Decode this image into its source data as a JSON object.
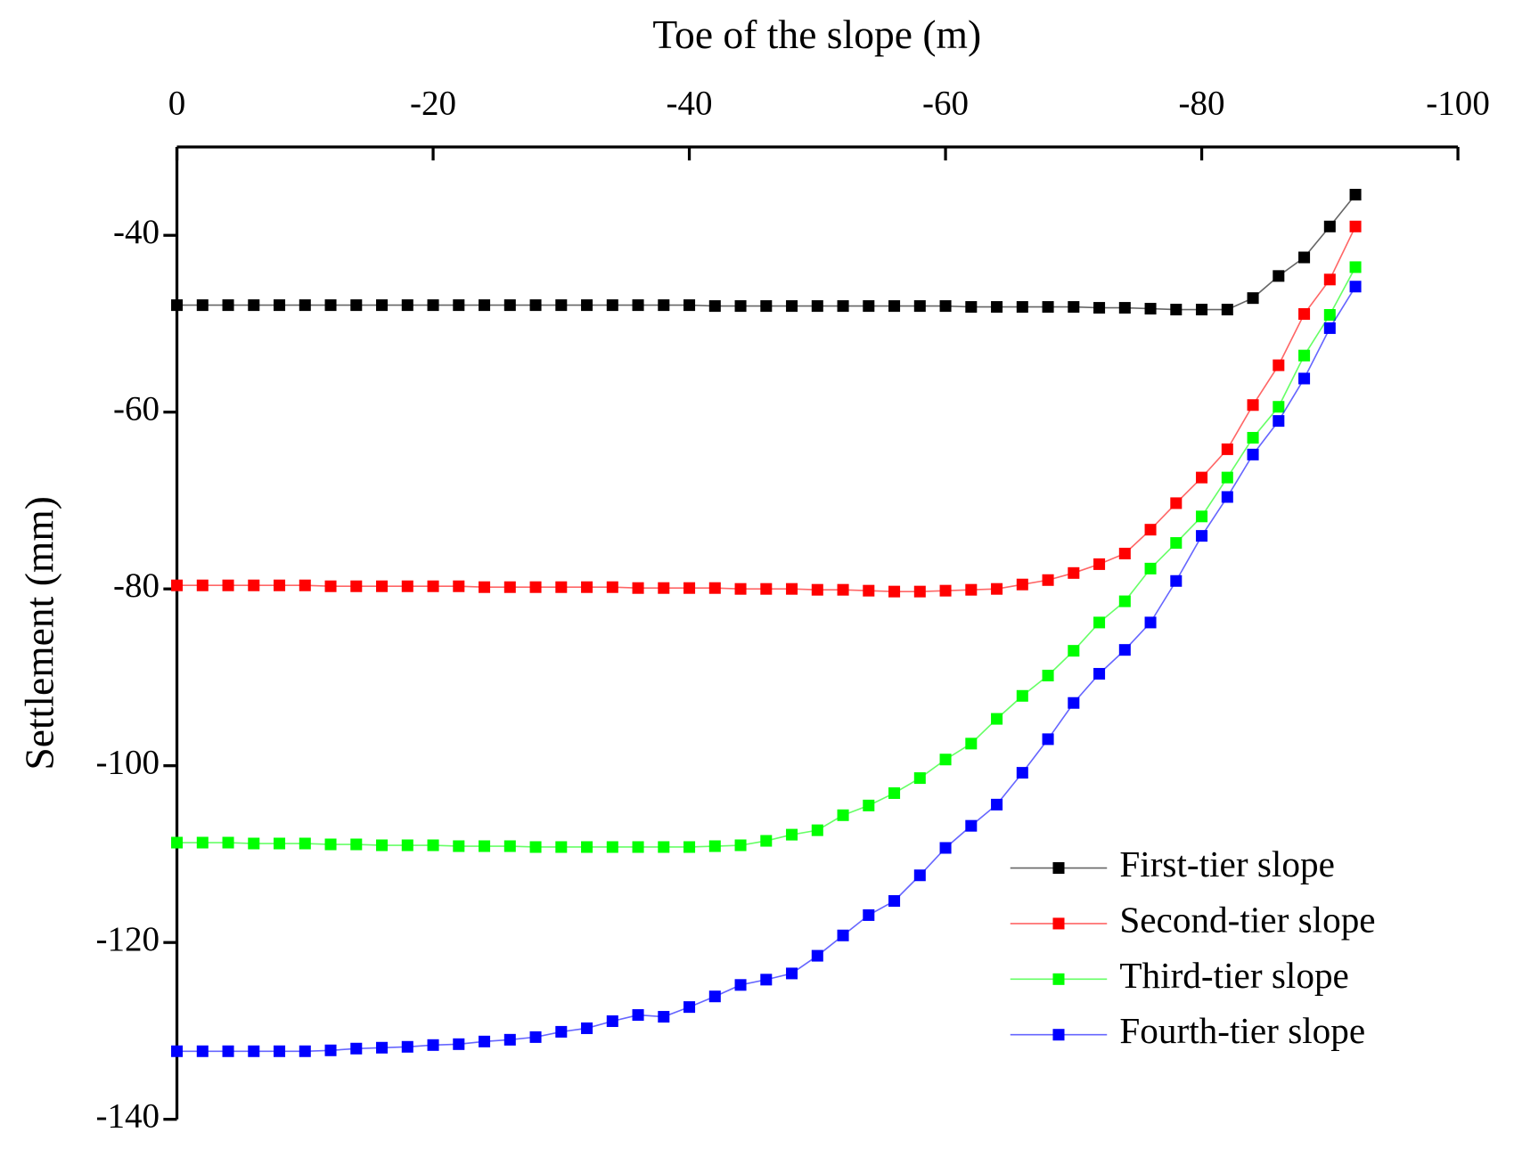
{
  "chart_data": {
    "type": "line",
    "xlabel": "Toe of the slope (m)",
    "ylabel": "Settlement (mm)",
    "xlim": [
      0,
      -100
    ],
    "xticks": [
      0,
      -20,
      -40,
      -60,
      -80,
      -100
    ],
    "ylim": [
      -140,
      -30
    ],
    "yticks": [
      -40,
      -60,
      -80,
      -100,
      -120,
      -140
    ],
    "legend": "lower right",
    "x": [
      0,
      -2,
      -4,
      -6,
      -8,
      -10,
      -12,
      -14,
      -16,
      -18,
      -20,
      -22,
      -24,
      -26,
      -28,
      -30,
      -32,
      -34,
      -36,
      -38,
      -40,
      -42,
      -44,
      -46,
      -48,
      -50,
      -52,
      -54,
      -56,
      -58,
      -60,
      -62,
      -64,
      -66,
      -68,
      -70,
      -72,
      -74,
      -76,
      -78,
      -80,
      -82,
      -84,
      -86,
      -88,
      -90,
      -92
    ],
    "series": [
      {
        "name": "First-tier slope",
        "color": "#000000",
        "values": [
          -47.9,
          -47.9,
          -47.9,
          -47.9,
          -47.9,
          -47.9,
          -47.9,
          -47.9,
          -47.9,
          -47.9,
          -47.9,
          -47.9,
          -47.9,
          -47.9,
          -47.9,
          -47.9,
          -47.9,
          -47.9,
          -47.9,
          -47.9,
          -47.9,
          -48.0,
          -48.0,
          -48.0,
          -48.0,
          -48.0,
          -48.0,
          -48.0,
          -48.0,
          -48.0,
          -48.0,
          -48.1,
          -48.1,
          -48.1,
          -48.1,
          -48.1,
          -48.2,
          -48.2,
          -48.3,
          -48.4,
          -48.4,
          -48.4,
          -47.1,
          -44.6,
          -42.5,
          -39.0,
          -35.4
        ]
      },
      {
        "name": "Second-tier slope",
        "color": "#ff0000",
        "values": [
          -79.6,
          -79.6,
          -79.6,
          -79.6,
          -79.6,
          -79.6,
          -79.7,
          -79.7,
          -79.7,
          -79.7,
          -79.7,
          -79.7,
          -79.8,
          -79.8,
          -79.8,
          -79.8,
          -79.8,
          -79.8,
          -79.9,
          -79.9,
          -79.9,
          -79.9,
          -80.0,
          -80.0,
          -80.0,
          -80.1,
          -80.1,
          -80.2,
          -80.3,
          -80.3,
          -80.2,
          -80.1,
          -80.0,
          -79.5,
          -79.0,
          -78.2,
          -77.2,
          -76.0,
          -73.3,
          -70.3,
          -67.4,
          -64.2,
          -59.2,
          -54.7,
          -48.9,
          -45.0,
          -39.0
        ]
      },
      {
        "name": "Third-tier slope",
        "color": "#00ff00",
        "values": [
          -108.7,
          -108.7,
          -108.7,
          -108.8,
          -108.8,
          -108.8,
          -108.9,
          -108.9,
          -109.0,
          -109.0,
          -109.0,
          -109.1,
          -109.1,
          -109.1,
          -109.2,
          -109.2,
          -109.2,
          -109.2,
          -109.2,
          -109.2,
          -109.2,
          -109.1,
          -109.0,
          -108.5,
          -107.8,
          -107.3,
          -105.6,
          -104.5,
          -103.1,
          -101.4,
          -99.3,
          -97.5,
          -94.7,
          -92.1,
          -89.8,
          -87.0,
          -83.8,
          -81.4,
          -77.7,
          -74.8,
          -71.8,
          -67.4,
          -62.9,
          -59.4,
          -53.6,
          -49.0,
          -43.6
        ]
      },
      {
        "name": "Fourth-tier slope",
        "color": "#0000ff",
        "values": [
          -132.3,
          -132.3,
          -132.3,
          -132.3,
          -132.3,
          -132.3,
          -132.2,
          -132.0,
          -131.9,
          -131.8,
          -131.6,
          -131.5,
          -131.2,
          -131.0,
          -130.7,
          -130.1,
          -129.7,
          -128.9,
          -128.2,
          -128.4,
          -127.3,
          -126.1,
          -124.8,
          -124.2,
          -123.5,
          -121.5,
          -119.2,
          -116.9,
          -115.3,
          -112.4,
          -109.3,
          -106.8,
          -104.4,
          -100.8,
          -97.0,
          -92.9,
          -89.6,
          -86.9,
          -83.8,
          -79.1,
          -74.0,
          -69.6,
          -64.8,
          -61.0,
          -56.2,
          -50.5,
          -45.8
        ]
      }
    ]
  }
}
